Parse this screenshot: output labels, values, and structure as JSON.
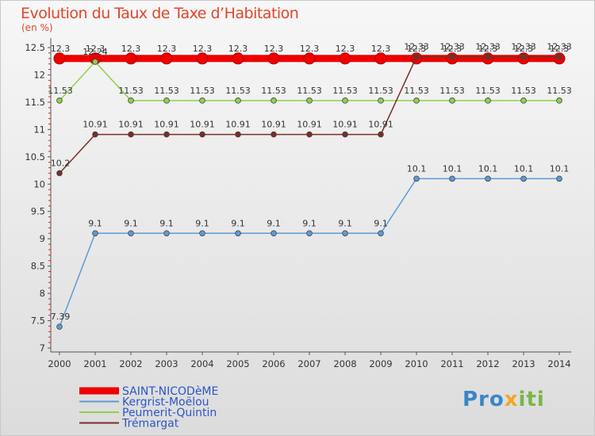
{
  "header": {
    "title": "Evolution du Taux de Taxe d’Habitation",
    "unit": "(en %)"
  },
  "logo": {
    "parts": [
      "Pro",
      "x",
      "iti"
    ],
    "colors": [
      "#3a86c8",
      "#f5a623",
      "#7ab648"
    ]
  },
  "chart_data": {
    "type": "line",
    "title": "Evolution du Taux de Taxe d’Habitation",
    "ylabel": "(en %)",
    "xlabel": "",
    "ylim": [
      7,
      12.5
    ],
    "yticks": [
      7,
      7.5,
      8,
      8.5,
      9,
      9.5,
      10,
      10.5,
      11,
      11.5,
      12,
      12.5
    ],
    "ytick_labels": [
      "7",
      "7.5",
      "8",
      "8.5",
      "9",
      "9.5",
      "10",
      "10.5",
      "11",
      "11.5",
      "12",
      "12.5"
    ],
    "categories": [
      "2000",
      "2001",
      "2002",
      "2003",
      "2004",
      "2005",
      "2006",
      "2007",
      "2008",
      "2009",
      "2010",
      "2011",
      "2012",
      "2013",
      "2014"
    ],
    "legend_position": "bottom-left",
    "series": [
      {
        "name": "SAINT-NICODèME",
        "color": "#ee0000",
        "highlight": true,
        "values": [
          12.3,
          12.3,
          12.3,
          12.3,
          12.3,
          12.3,
          12.3,
          12.3,
          12.3,
          12.3,
          12.3,
          12.3,
          12.3,
          12.3,
          12.3
        ],
        "labels": [
          "12.3",
          "12.3",
          "12.3",
          "12.3",
          "12.3",
          "12.3",
          "12.3",
          "12.3",
          "12.3",
          "12.3",
          "12.3",
          "12.3",
          "12.3",
          "12.3",
          "12.3"
        ]
      },
      {
        "name": "Kergrist-Moëlou",
        "color": "#5b9bd5",
        "values": [
          7.39,
          9.1,
          9.1,
          9.1,
          9.1,
          9.1,
          9.1,
          9.1,
          9.1,
          9.1,
          10.1,
          10.1,
          10.1,
          10.1,
          10.1
        ],
        "labels": [
          "7.39",
          "9.1",
          "9.1",
          "9.1",
          "9.1",
          "9.1",
          "9.1",
          "9.1",
          "9.1",
          "9.1",
          "10.1",
          "10.1",
          "10.1",
          "10.1",
          "10.1"
        ]
      },
      {
        "name": "Peumerit-Quintin",
        "color": "#8ed14a",
        "values": [
          11.53,
          12.24,
          11.53,
          11.53,
          11.53,
          11.53,
          11.53,
          11.53,
          11.53,
          11.53,
          11.53,
          11.53,
          11.53,
          11.53,
          11.53
        ],
        "labels": [
          "11.53",
          "12.24",
          "11.53",
          "11.53",
          "11.53",
          "11.53",
          "11.53",
          "11.53",
          "11.53",
          "11.53",
          "11.53",
          "11.53",
          "11.53",
          "11.53",
          "11.53"
        ]
      },
      {
        "name": "Trémargat",
        "color": "#7b2d26",
        "values": [
          10.2,
          10.91,
          10.91,
          10.91,
          10.91,
          10.91,
          10.91,
          10.91,
          10.91,
          10.91,
          12.33,
          12.33,
          12.33,
          12.33,
          12.33
        ],
        "labels": [
          "10.2",
          "10.91",
          "10.91",
          "10.91",
          "10.91",
          "10.91",
          "10.91",
          "10.91",
          "10.91",
          "10.91",
          "12.33",
          "12.33",
          "12.33",
          "12.33",
          "12.33"
        ]
      }
    ]
  }
}
